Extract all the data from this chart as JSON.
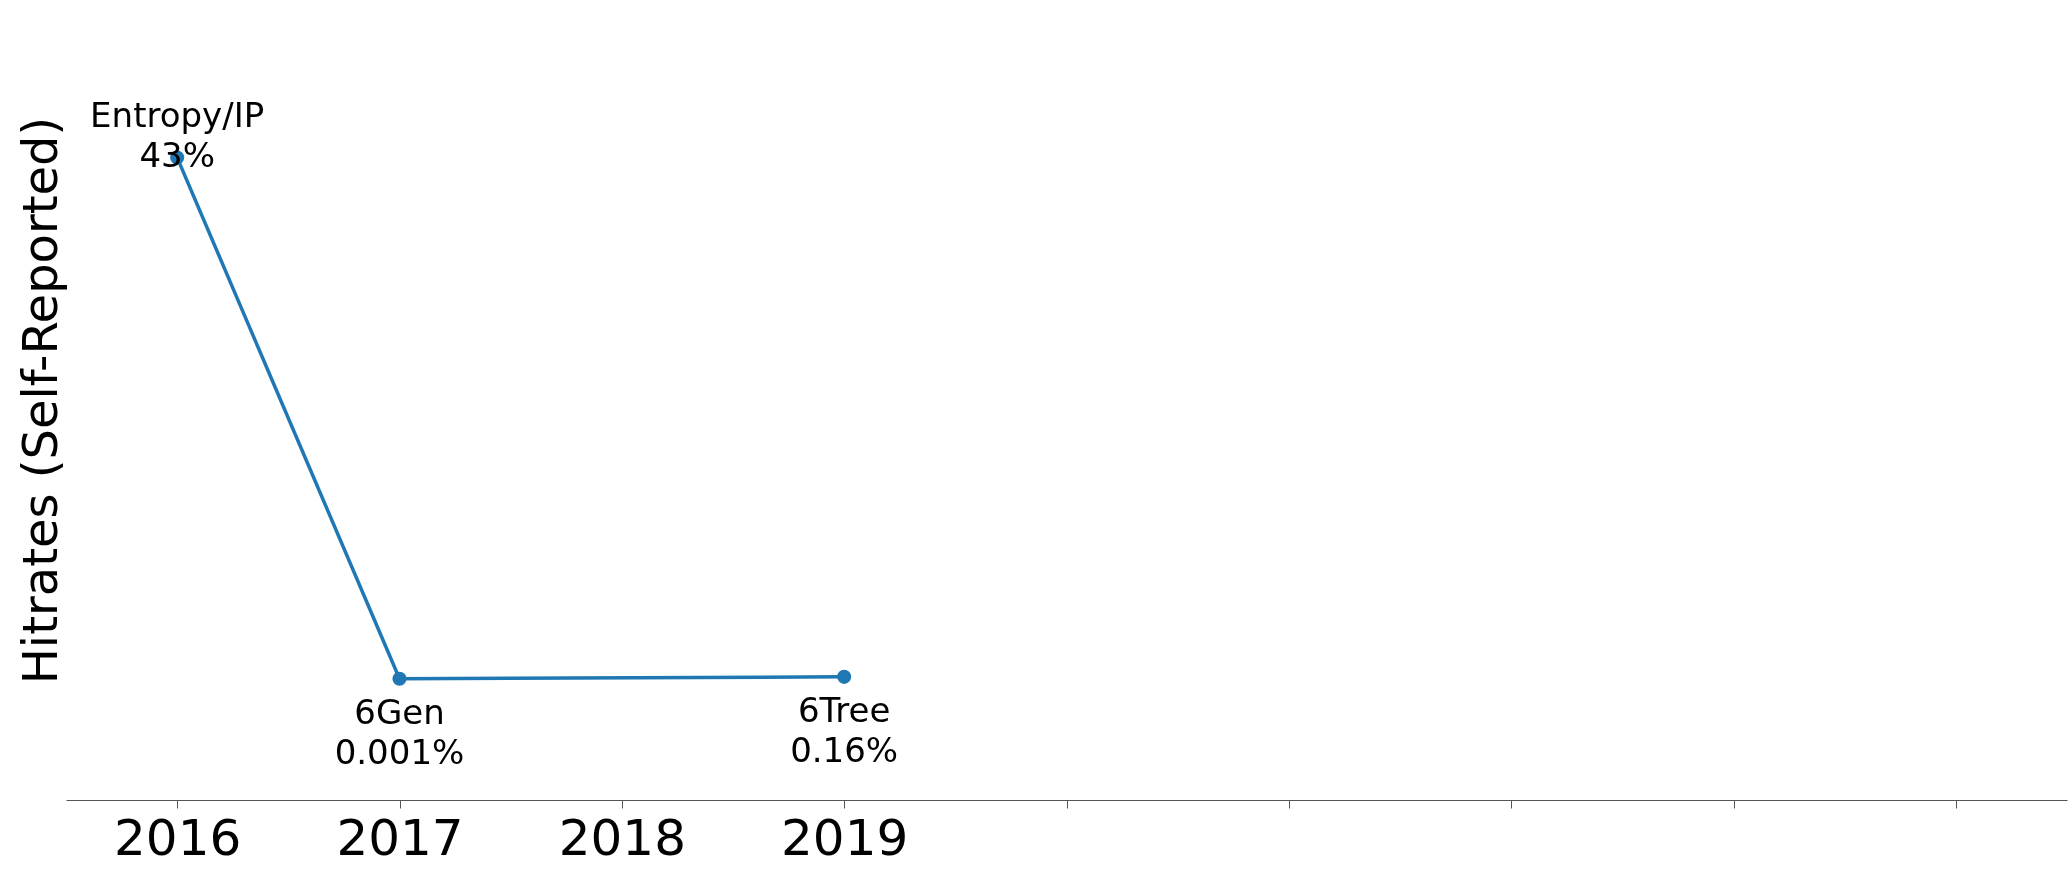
{
  "chart_data": {
    "type": "line",
    "ylabel": "Hitrates (Self-Reported)",
    "x": [
      2016,
      2017,
      2019
    ],
    "series": [
      {
        "color": "#1f77b4",
        "values": [
          43,
          0.001,
          0.16
        ],
        "value_labels": [
          "43%",
          "0.001%",
          "0.16%"
        ]
      }
    ],
    "annotations": [
      {
        "text": "Entropy/IP",
        "x": 2016,
        "y": 43
      },
      {
        "text": "6Gen",
        "x": 2017,
        "y": 0.001
      },
      {
        "text": "6Tree",
        "x": 2019,
        "y": 0.16
      }
    ],
    "xlim": [
      2015.5,
      2024.5
    ],
    "ylim": [
      -10,
      56
    ],
    "xticks": [
      2016,
      2017,
      2018,
      2019,
      {
        "value": 2020,
        "label": null
      },
      {
        "value": 2021,
        "label": null
      },
      {
        "value": 2022,
        "label": null
      },
      {
        "value": 2023,
        "label": null
      },
      {
        "value": 2024,
        "label": null
      }
    ],
    "tick_labels": "x",
    "grid": false,
    "marker": "circle",
    "legend": false
  }
}
